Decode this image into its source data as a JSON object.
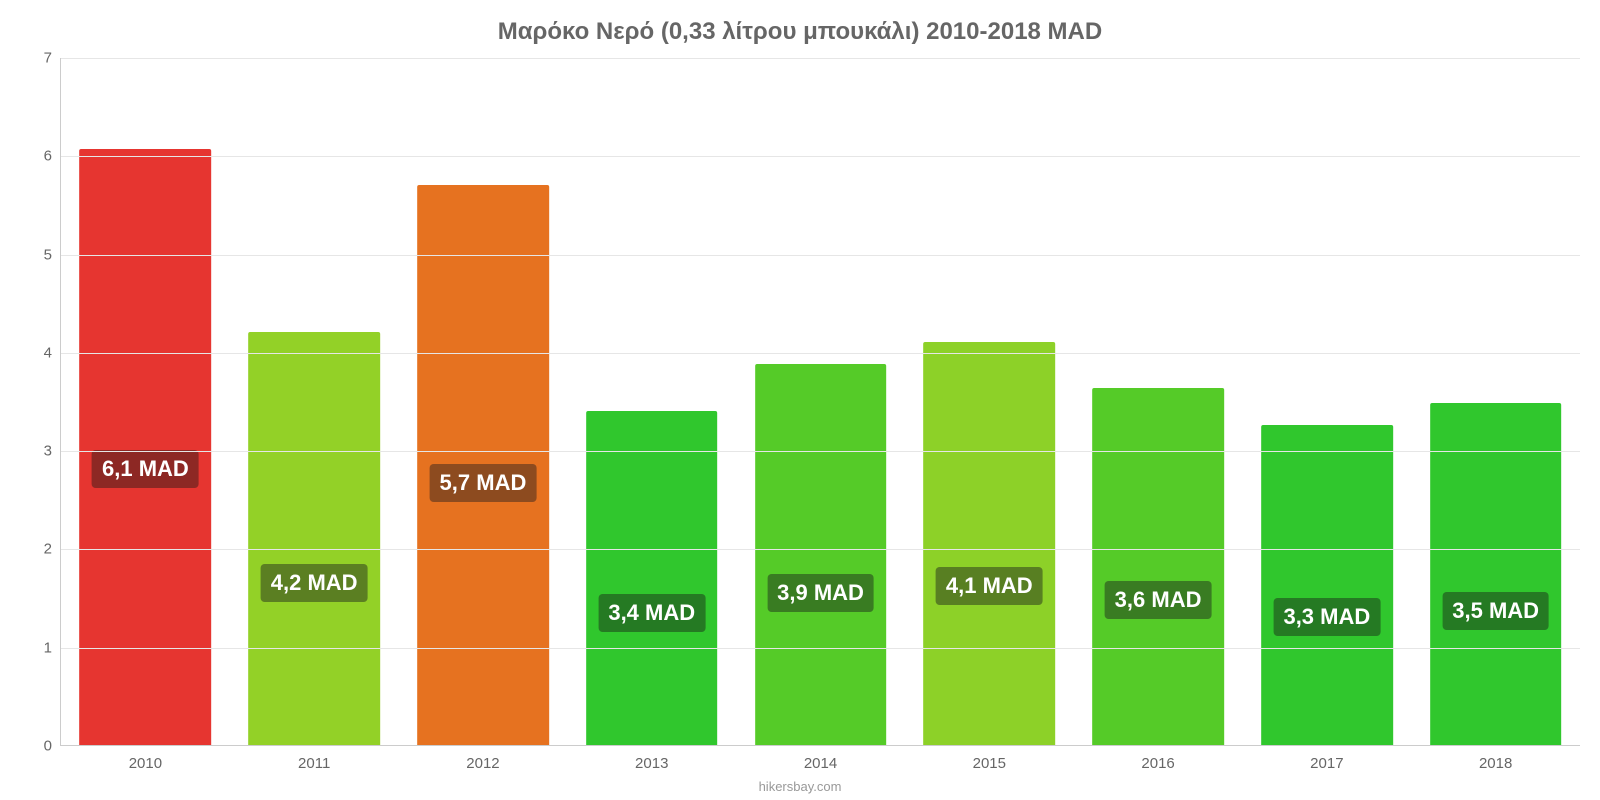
{
  "chart": {
    "type": "bar",
    "title": "Μαρόκο Νερό (0,33 λίτρου μπουκάλι) 2010-2018 MAD",
    "title_fontsize": 24,
    "title_color": "#666666",
    "background_color": "#ffffff",
    "grid_color": "#e6e6e6",
    "axis_color": "#cccccc",
    "tick_label_color": "#666666",
    "tick_fontsize": 15,
    "ylim_min": 0,
    "ylim_max": 7,
    "ytick_step": 1,
    "bar_width_pct": 78,
    "value_label_fontsize": 22,
    "value_label_color": "#ffffff",
    "value_label_bg_opacity": 0.55,
    "credit": "hikersbay.com",
    "credit_fontsize": 13,
    "credit_color": "#999999",
    "categories": [
      "2010",
      "2011",
      "2012",
      "2013",
      "2014",
      "2015",
      "2016",
      "2017",
      "2018"
    ],
    "values": [
      6.06,
      4.2,
      5.7,
      3.4,
      3.88,
      4.1,
      3.63,
      3.26,
      3.48
    ],
    "value_labels": [
      "6,1 MAD",
      "4,2 MAD",
      "5,7 MAD",
      "3,4 MAD",
      "3,9 MAD",
      "4,1 MAD",
      "3,6 MAD",
      "3,3 MAD",
      "3,5 MAD"
    ],
    "bar_colors": [
      "#e63530",
      "#93d127",
      "#e67220",
      "#30c72d",
      "#55cb28",
      "#8dd128",
      "#55cb28",
      "#30c72d",
      "#30c72d"
    ],
    "label_bg_colors": [
      "#8d2824",
      "#5b7f22",
      "#8d4b1f",
      "#257a23",
      "#397c22",
      "#587f22",
      "#397c22",
      "#257a23",
      "#257a23"
    ],
    "label_y_offsets": [
      0.6,
      0.7,
      0.6,
      0.72,
      0.7,
      0.7,
      0.7,
      0.72,
      0.72
    ]
  }
}
